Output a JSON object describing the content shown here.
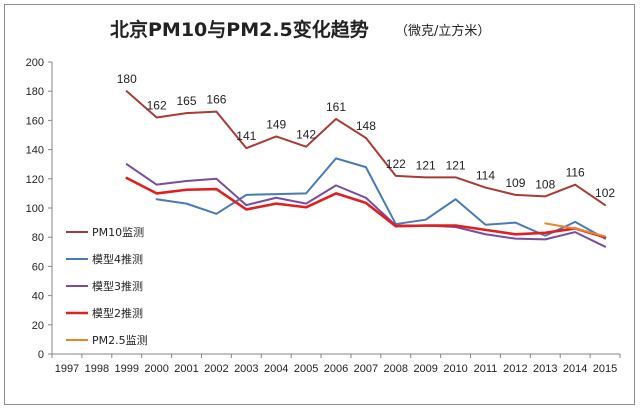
{
  "chart_data": {
    "type": "line",
    "title": "北京PM10与PM2.5变化趋势",
    "unit": "（微克/立方米）",
    "xlabel": "",
    "ylabel": "",
    "ylim": [
      0,
      200
    ],
    "y_ticks": [
      0,
      20,
      40,
      60,
      80,
      100,
      120,
      140,
      160,
      180,
      200
    ],
    "categories": [
      "1997",
      "1998",
      "1999",
      "2000",
      "2001",
      "2002",
      "2003",
      "2004",
      "2005",
      "2006",
      "2007",
      "2008",
      "2009",
      "2010",
      "2011",
      "2012",
      "2013",
      "2014",
      "2015"
    ],
    "series": [
      {
        "name": "PM10监测",
        "color": "#a83b35",
        "width": 2,
        "values": [
          null,
          null,
          180,
          162,
          165,
          166,
          141,
          149,
          142,
          161,
          148,
          122,
          121,
          121,
          114,
          109,
          108,
          116,
          102
        ]
      },
      {
        "name": "模型4推测",
        "color": "#4a7ab5",
        "width": 2,
        "values": [
          null,
          null,
          null,
          106,
          103,
          96,
          109,
          109.5,
          110,
          134,
          128,
          89,
          92,
          106,
          88.5,
          90,
          81,
          90.5,
          79
        ]
      },
      {
        "name": "模型3推测",
        "color": "#7a4d9a",
        "width": 2,
        "values": [
          null,
          null,
          130,
          116,
          118.5,
          120,
          102,
          107,
          103,
          115.5,
          107,
          88,
          88,
          87,
          82,
          79,
          78.5,
          83.5,
          73.5
        ]
      },
      {
        "name": "模型2推测",
        "color": "#e02020",
        "width": 2.6,
        "values": [
          null,
          null,
          120.5,
          110,
          112.5,
          113,
          99,
          103,
          100.5,
          110,
          103.5,
          87.5,
          88,
          88,
          85,
          82,
          83,
          86,
          80
        ]
      },
      {
        "name": "PM2.5监测",
        "color": "#e8862a",
        "width": 2,
        "values": [
          null,
          null,
          null,
          null,
          null,
          null,
          null,
          null,
          null,
          null,
          null,
          null,
          null,
          null,
          null,
          null,
          89.5,
          85.9,
          80.6
        ]
      }
    ],
    "data_labels": [
      {
        "category": "1999",
        "value": 180,
        "text": "180"
      },
      {
        "category": "2000",
        "value": 162,
        "text": "162"
      },
      {
        "category": "2001",
        "value": 165,
        "text": "165"
      },
      {
        "category": "2002",
        "value": 166,
        "text": "166"
      },
      {
        "category": "2003",
        "value": 141,
        "text": "141"
      },
      {
        "category": "2004",
        "value": 149,
        "text": "149"
      },
      {
        "category": "2005",
        "value": 142,
        "text": "142"
      },
      {
        "category": "2006",
        "value": 161,
        "text": "161"
      },
      {
        "category": "2007",
        "value": 148,
        "text": "148"
      },
      {
        "category": "2008",
        "value": 122,
        "text": "122"
      },
      {
        "category": "2009",
        "value": 121,
        "text": "121"
      },
      {
        "category": "2010",
        "value": 121,
        "text": "121"
      },
      {
        "category": "2011",
        "value": 114,
        "text": "114"
      },
      {
        "category": "2012",
        "value": 109,
        "text": "109"
      },
      {
        "category": "2013",
        "value": 108,
        "text": "108"
      },
      {
        "category": "2014",
        "value": 116,
        "text": "116"
      },
      {
        "category": "2015",
        "value": 102,
        "text": "102"
      }
    ],
    "legend": [
      "PM10监测",
      "模型4推测",
      "模型3推测",
      "模型2推测",
      "PM2.5监测"
    ],
    "legend_position": "bottom-left-inside",
    "grid": false
  }
}
